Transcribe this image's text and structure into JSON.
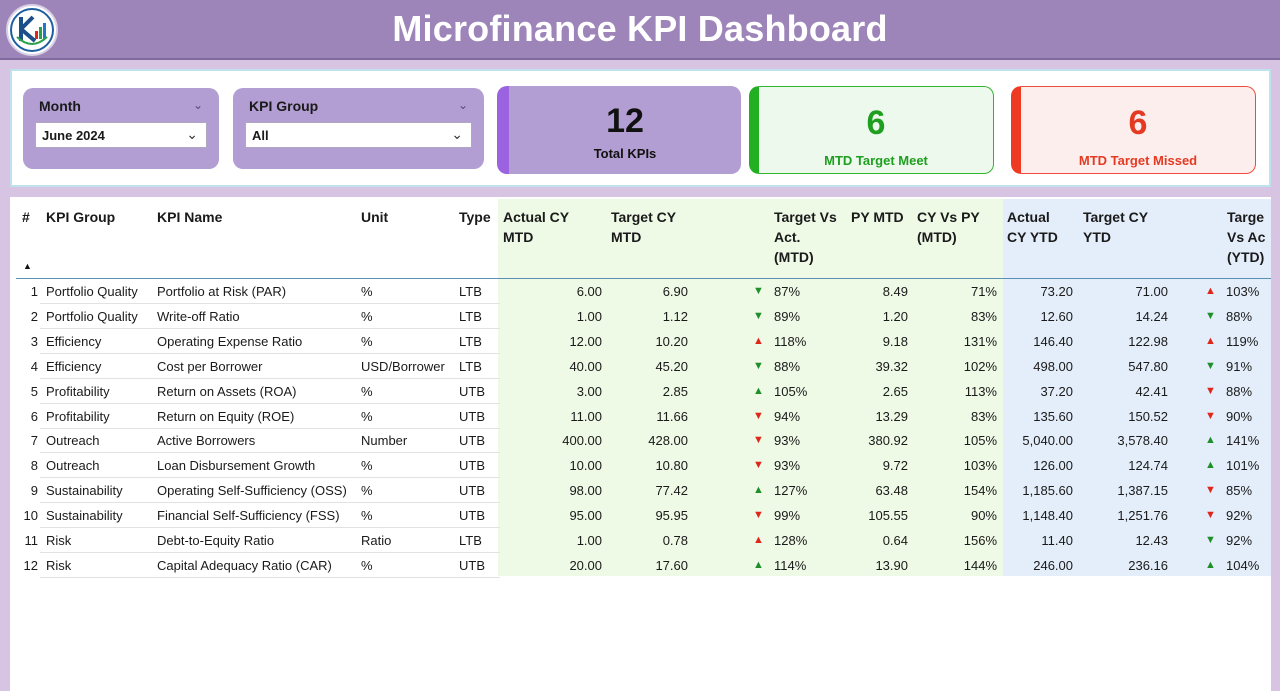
{
  "header": {
    "title": "Microfinance KPI Dashboard"
  },
  "filters": {
    "month": {
      "label": "Month",
      "value": "June 2024"
    },
    "kpi_group": {
      "label": "KPI Group",
      "value": "All"
    }
  },
  "cards": {
    "total": {
      "value": "12",
      "label": "Total KPIs"
    },
    "meet": {
      "value": "6",
      "label": "MTD Target Meet"
    },
    "missed": {
      "value": "6",
      "label": "MTD Target Missed"
    }
  },
  "table": {
    "headers": {
      "num": "#",
      "group": "KPI Group",
      "name": "KPI Name",
      "unit": "Unit",
      "type": "Type",
      "actual_mtd_1": "Actual CY",
      "actual_mtd_2": "MTD",
      "target_mtd_1": "Target CY",
      "target_mtd_2": "MTD",
      "tva_mtd_1": "Target Vs",
      "tva_mtd_2": "Act.",
      "tva_mtd_3": "(MTD)",
      "py_mtd": "PY MTD",
      "cyvspy_1": "CY Vs PY",
      "cyvspy_2": "(MTD)",
      "actual_ytd_1": "Actual",
      "actual_ytd_2": "CY YTD",
      "target_ytd_1": "Target CY",
      "target_ytd_2": "YTD",
      "tva_ytd_1": "Targe",
      "tva_ytd_2": "Vs Ac",
      "tva_ytd_3": "(YTD)"
    },
    "rows": [
      {
        "n": "1",
        "group": "Portfolio Quality",
        "name": "Portfolio at Risk (PAR)",
        "unit": "%",
        "type": "LTB",
        "act_mtd": "6.00",
        "tgt_mtd": "6.90",
        "mtd_icon": "down-green",
        "tva_mtd": "87%",
        "py_mtd": "8.49",
        "cyvspy": "71%",
        "act_ytd": "73.20",
        "tgt_ytd": "71.00",
        "ytd_icon": "up-red",
        "tva_ytd": "103%"
      },
      {
        "n": "2",
        "group": "Portfolio Quality",
        "name": "Write-off Ratio",
        "unit": "%",
        "type": "LTB",
        "act_mtd": "1.00",
        "tgt_mtd": "1.12",
        "mtd_icon": "down-green",
        "tva_mtd": "89%",
        "py_mtd": "1.20",
        "cyvspy": "83%",
        "act_ytd": "12.60",
        "tgt_ytd": "14.24",
        "ytd_icon": "down-green",
        "tva_ytd": "88%"
      },
      {
        "n": "3",
        "group": "Efficiency",
        "name": "Operating Expense Ratio",
        "unit": "%",
        "type": "LTB",
        "act_mtd": "12.00",
        "tgt_mtd": "10.20",
        "mtd_icon": "up-red",
        "tva_mtd": "118%",
        "py_mtd": "9.18",
        "cyvspy": "131%",
        "act_ytd": "146.40",
        "tgt_ytd": "122.98",
        "ytd_icon": "up-red",
        "tva_ytd": "119%"
      },
      {
        "n": "4",
        "group": "Efficiency",
        "name": "Cost per Borrower",
        "unit": "USD/Borrower",
        "type": "LTB",
        "act_mtd": "40.00",
        "tgt_mtd": "45.20",
        "mtd_icon": "down-green",
        "tva_mtd": "88%",
        "py_mtd": "39.32",
        "cyvspy": "102%",
        "act_ytd": "498.00",
        "tgt_ytd": "547.80",
        "ytd_icon": "down-green",
        "tva_ytd": "91%"
      },
      {
        "n": "5",
        "group": "Profitability",
        "name": "Return on Assets (ROA)",
        "unit": "%",
        "type": "UTB",
        "act_mtd": "3.00",
        "tgt_mtd": "2.85",
        "mtd_icon": "up-green",
        "tva_mtd": "105%",
        "py_mtd": "2.65",
        "cyvspy": "113%",
        "act_ytd": "37.20",
        "tgt_ytd": "42.41",
        "ytd_icon": "down-red",
        "tva_ytd": "88%"
      },
      {
        "n": "6",
        "group": "Profitability",
        "name": "Return on Equity (ROE)",
        "unit": "%",
        "type": "UTB",
        "act_mtd": "11.00",
        "tgt_mtd": "11.66",
        "mtd_icon": "down-red",
        "tva_mtd": "94%",
        "py_mtd": "13.29",
        "cyvspy": "83%",
        "act_ytd": "135.60",
        "tgt_ytd": "150.52",
        "ytd_icon": "down-red",
        "tva_ytd": "90%"
      },
      {
        "n": "7",
        "group": "Outreach",
        "name": "Active Borrowers",
        "unit": "Number",
        "type": "UTB",
        "act_mtd": "400.00",
        "tgt_mtd": "428.00",
        "mtd_icon": "down-red",
        "tva_mtd": "93%",
        "py_mtd": "380.92",
        "cyvspy": "105%",
        "act_ytd": "5,040.00",
        "tgt_ytd": "3,578.40",
        "ytd_icon": "up-green",
        "tva_ytd": "141%"
      },
      {
        "n": "8",
        "group": "Outreach",
        "name": "Loan Disbursement Growth",
        "unit": "%",
        "type": "UTB",
        "act_mtd": "10.00",
        "tgt_mtd": "10.80",
        "mtd_icon": "down-red",
        "tva_mtd": "93%",
        "py_mtd": "9.72",
        "cyvspy": "103%",
        "act_ytd": "126.00",
        "tgt_ytd": "124.74",
        "ytd_icon": "up-green",
        "tva_ytd": "101%"
      },
      {
        "n": "9",
        "group": "Sustainability",
        "name": "Operating Self-Sufficiency (OSS)",
        "unit": "%",
        "type": "UTB",
        "act_mtd": "98.00",
        "tgt_mtd": "77.42",
        "mtd_icon": "up-green",
        "tva_mtd": "127%",
        "py_mtd": "63.48",
        "cyvspy": "154%",
        "act_ytd": "1,185.60",
        "tgt_ytd": "1,387.15",
        "ytd_icon": "down-red",
        "tva_ytd": "85%"
      },
      {
        "n": "10",
        "group": "Sustainability",
        "name": "Financial Self-Sufficiency (FSS)",
        "unit": "%",
        "type": "UTB",
        "act_mtd": "95.00",
        "tgt_mtd": "95.95",
        "mtd_icon": "down-red",
        "tva_mtd": "99%",
        "py_mtd": "105.55",
        "cyvspy": "90%",
        "act_ytd": "1,148.40",
        "tgt_ytd": "1,251.76",
        "ytd_icon": "down-red",
        "tva_ytd": "92%"
      },
      {
        "n": "11",
        "group": "Risk",
        "name": "Debt-to-Equity Ratio",
        "unit": "Ratio",
        "type": "LTB",
        "act_mtd": "1.00",
        "tgt_mtd": "0.78",
        "mtd_icon": "up-red",
        "tva_mtd": "128%",
        "py_mtd": "0.64",
        "cyvspy": "156%",
        "act_ytd": "11.40",
        "tgt_ytd": "12.43",
        "ytd_icon": "down-green",
        "tva_ytd": "92%"
      },
      {
        "n": "12",
        "group": "Risk",
        "name": "Capital Adequacy Ratio (CAR)",
        "unit": "%",
        "type": "UTB",
        "act_mtd": "20.00",
        "tgt_mtd": "17.60",
        "mtd_icon": "up-green",
        "tva_mtd": "114%",
        "py_mtd": "13.90",
        "cyvspy": "144%",
        "act_ytd": "246.00",
        "tgt_ytd": "236.16",
        "ytd_icon": "up-green",
        "tva_ytd": "104%"
      }
    ]
  },
  "colors": {
    "header_bg": "#9e85b9",
    "slicer_bg": "#b29ed2",
    "meet_green": "#1f9f1f",
    "miss_red": "#e43a22",
    "mtd_band": "#eef9e6",
    "ytd_band": "#e4eefa"
  }
}
